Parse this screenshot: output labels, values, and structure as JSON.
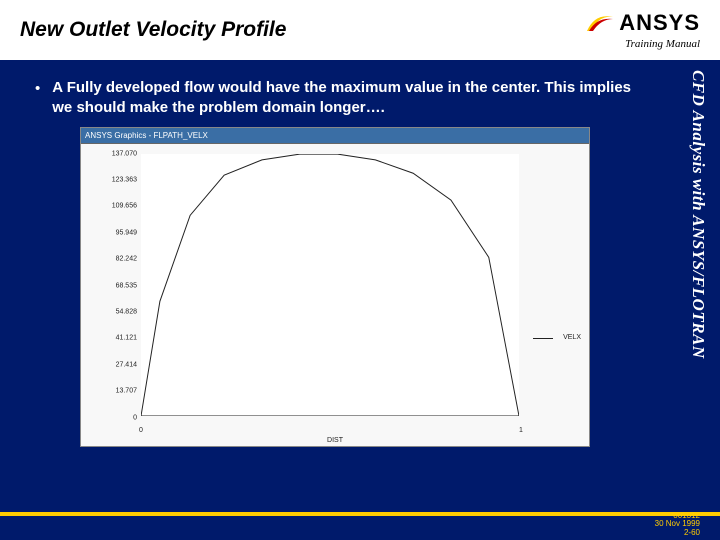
{
  "header": {
    "title": "New Outlet Velocity Profile",
    "logo_text": "ANSYS",
    "subtitle": "Training Manual"
  },
  "content": {
    "bullet_text": "A Fully developed flow would have the maximum value in the center.   This implies we should make the problem domain longer…."
  },
  "side_label": "CFD Analysis with ANSYS/FLOTRAN",
  "chart": {
    "window_title": "ANSYS Graphics - FLPATH_VELX",
    "type": "line",
    "x_values": [
      0.0,
      0.05,
      0.13,
      0.22,
      0.32,
      0.42,
      0.52,
      0.62,
      0.72,
      0.82,
      0.92,
      1.0
    ],
    "y_values": [
      0,
      60,
      105,
      126,
      134,
      137,
      137,
      134,
      127,
      113,
      83,
      0
    ],
    "line_color": "#222222",
    "line_width": 1,
    "xlim": [
      0,
      1
    ],
    "ylim": [
      0,
      137.07
    ],
    "y_ticks": [
      0,
      13.707,
      27.414,
      41.121,
      54.828,
      68.535,
      82.242,
      95.949,
      109.656,
      123.363,
      137.07
    ],
    "y_tick_labels": [
      "0",
      "13.707",
      "27.414",
      "41.121",
      "54.828",
      "68.535",
      "82.242",
      "95.949",
      "109.656",
      "123.363",
      "137.070"
    ],
    "x_ticks": [
      0,
      1
    ],
    "x_tick_labels": [
      "0",
      "1"
    ],
    "x_label": "DIST",
    "legend_label": "VELX",
    "background_color": "#ffffff",
    "tick_color": "#222222",
    "titlebar_bg": "#3a6ea5",
    "axis_fontsize": 7
  },
  "footer": {
    "code": "001312",
    "date": "30 Nov 1999",
    "page": "2-60"
  },
  "accent_color": "#ffcc00"
}
